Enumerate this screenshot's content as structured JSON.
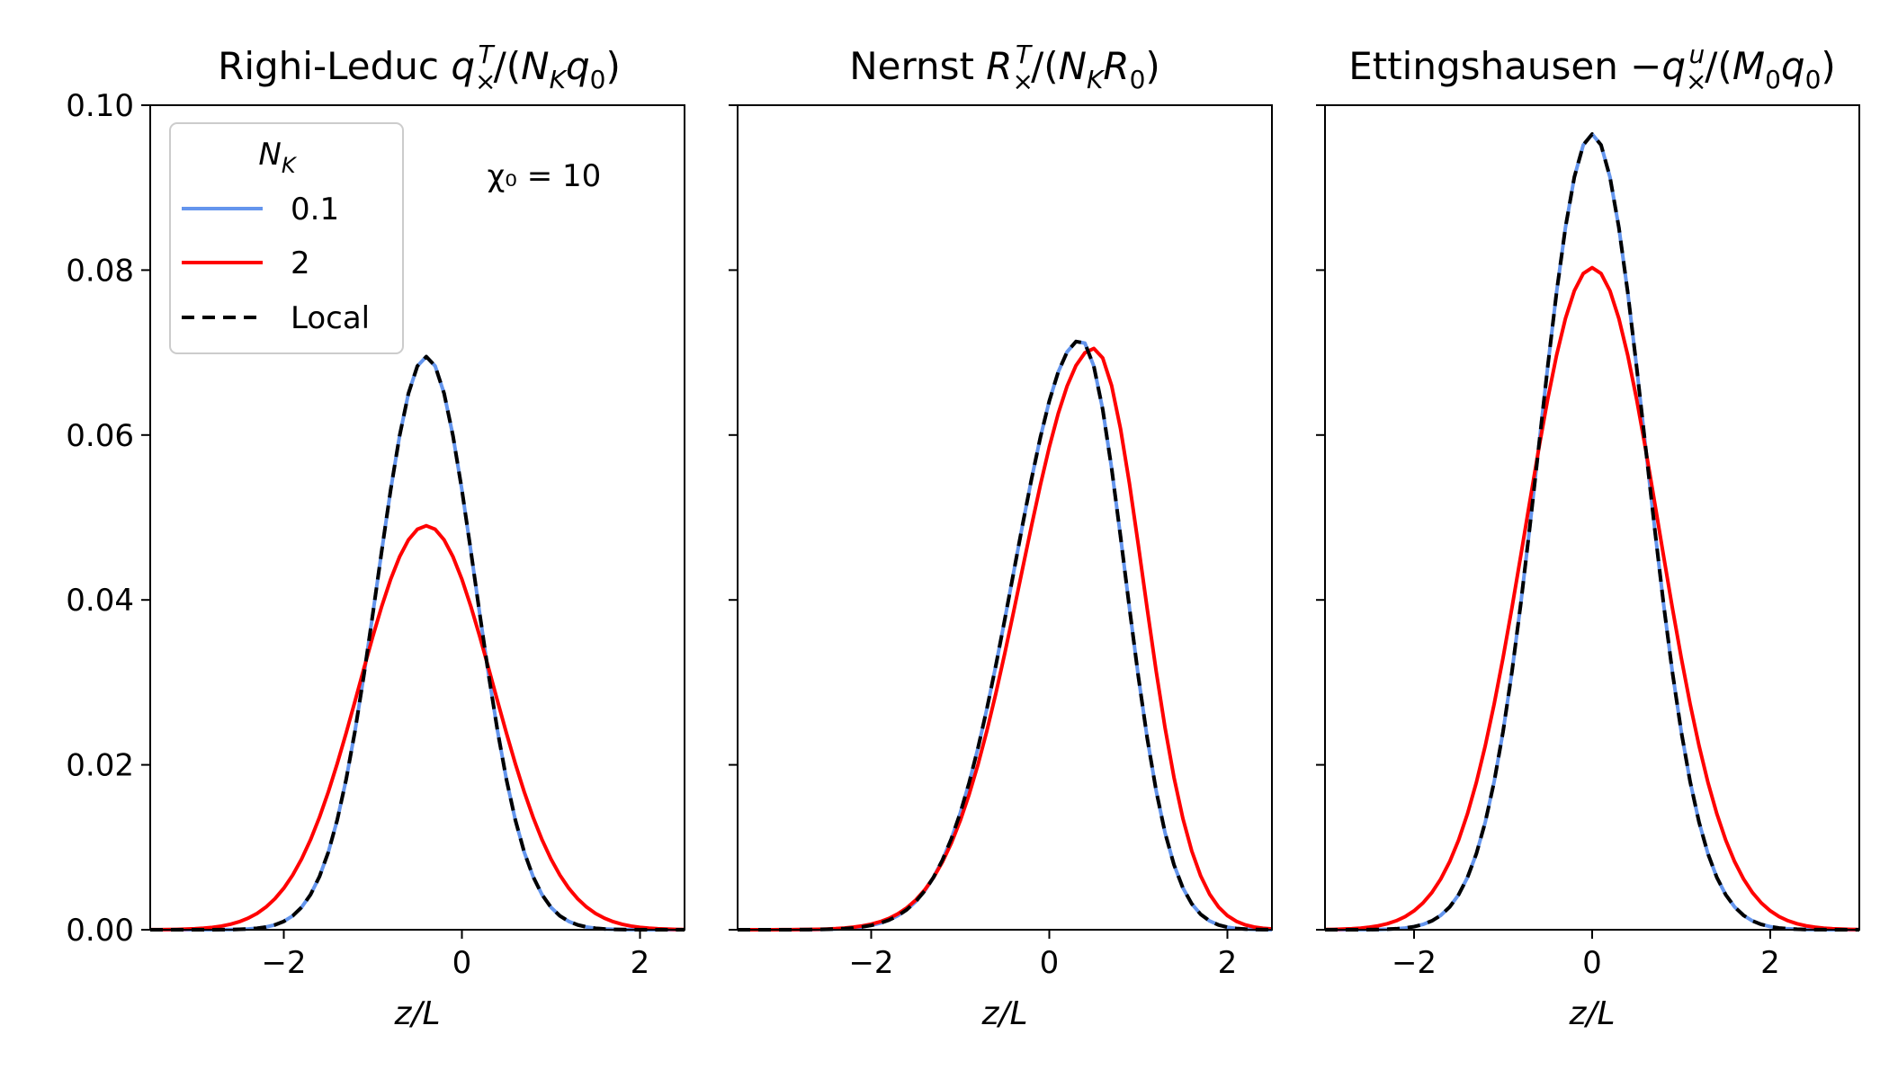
{
  "figure": {
    "annotation": "χ₀ = 10",
    "legend": {
      "title": "N_K",
      "entries": [
        {
          "label": "0.1",
          "color": "#6495ed",
          "style": "solid"
        },
        {
          "label": "2",
          "color": "#ff0000",
          "style": "solid"
        },
        {
          "label": "Local",
          "color": "#000000",
          "style": "dashed"
        }
      ]
    }
  },
  "chart_data": [
    {
      "type": "line",
      "title": "Righi-Leduc q×T/(NKq0)",
      "xlabel": "z/L",
      "ylabel": "",
      "xlim": [
        -3.5,
        2.5
      ],
      "ylim": [
        0,
        0.1
      ],
      "xticks": [
        -2,
        0,
        2
      ],
      "xtick_labels": [
        "−2",
        "0",
        "2"
      ],
      "yticks": [
        0,
        0.02,
        0.04,
        0.06,
        0.08,
        0.1
      ],
      "ytick_labels": [
        "0.00",
        "0.02",
        "0.04",
        "0.06",
        "0.08",
        "0.10"
      ],
      "series": [
        {
          "name": "0.1",
          "color": "#6495ed",
          "dash": false,
          "curve": {
            "kind": "gauss",
            "amp": 0.0695,
            "mu": -0.4,
            "sigma": 0.55
          }
        },
        {
          "name": "2",
          "color": "#ff0000",
          "dash": false,
          "curve": {
            "kind": "gauss",
            "amp": 0.049,
            "mu": -0.4,
            "sigma": 0.75
          }
        },
        {
          "name": "Local",
          "color": "#000000",
          "dash": true,
          "curve": {
            "kind": "gauss",
            "amp": 0.0695,
            "mu": -0.4,
            "sigma": 0.55
          }
        }
      ]
    },
    {
      "type": "line",
      "title": "Nernst R×T/(NKR0)",
      "xlabel": "z/L",
      "ylabel": "",
      "xlim": [
        -3.5,
        2.5
      ],
      "ylim": [
        0,
        0.1
      ],
      "xticks": [
        -2,
        0,
        2
      ],
      "xtick_labels": [
        "−2",
        "0",
        "2"
      ],
      "yticks": [
        0,
        0.02,
        0.04,
        0.06,
        0.08,
        0.1
      ],
      "ytick_labels": [
        "",
        "",
        "",
        "",
        "",
        ""
      ],
      "series": [
        {
          "name": "0.1",
          "color": "#6495ed",
          "dash": false,
          "curve": {
            "kind": "skew",
            "amp": 0.0715,
            "mu": 0.35,
            "sigmaLeft": 0.75,
            "sigmaRight": 0.5
          }
        },
        {
          "name": "2",
          "color": "#ff0000",
          "dash": false,
          "curve": {
            "kind": "skew",
            "amp": 0.0705,
            "mu": 0.5,
            "sigmaLeft": 0.82,
            "sigmaRight": 0.55
          }
        },
        {
          "name": "Local",
          "color": "#000000",
          "dash": true,
          "curve": {
            "kind": "skew",
            "amp": 0.0715,
            "mu": 0.35,
            "sigmaLeft": 0.75,
            "sigmaRight": 0.5
          }
        }
      ]
    },
    {
      "type": "line",
      "title": "Ettingshausen −q×u/(M0q0)",
      "xlabel": "z/L",
      "ylabel": "",
      "xlim": [
        -3,
        3
      ],
      "ylim": [
        0,
        0.1
      ],
      "xticks": [
        -2,
        0,
        2
      ],
      "xtick_labels": [
        "−2",
        "0",
        "2"
      ],
      "yticks": [
        0,
        0.02,
        0.04,
        0.06,
        0.08,
        0.1
      ],
      "ytick_labels": [
        "",
        "",
        "",
        "",
        "",
        ""
      ],
      "series": [
        {
          "name": "0.1",
          "color": "#6495ed",
          "dash": false,
          "curve": {
            "kind": "gauss",
            "amp": 0.0965,
            "mu": 0,
            "sigma": 0.6
          }
        },
        {
          "name": "2",
          "color": "#ff0000",
          "dash": false,
          "curve": {
            "kind": "gauss",
            "amp": 0.0803,
            "mu": 0,
            "sigma": 0.75
          }
        },
        {
          "name": "Local",
          "color": "#000000",
          "dash": true,
          "curve": {
            "kind": "gauss",
            "amp": 0.0965,
            "mu": 0,
            "sigma": 0.6
          }
        }
      ]
    }
  ]
}
